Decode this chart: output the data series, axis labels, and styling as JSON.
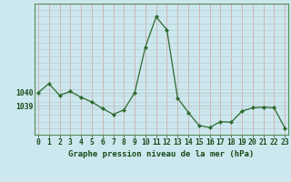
{
  "x": [
    0,
    1,
    2,
    3,
    4,
    5,
    6,
    7,
    8,
    9,
    10,
    11,
    12,
    13,
    14,
    15,
    16,
    17,
    18,
    19,
    20,
    21,
    22,
    23
  ],
  "y": [
    1040.0,
    1040.7,
    1039.8,
    1040.1,
    1039.65,
    1039.3,
    1038.8,
    1038.35,
    1038.7,
    1040.0,
    1043.5,
    1045.8,
    1044.8,
    1039.6,
    1038.5,
    1037.5,
    1037.35,
    1037.8,
    1037.75,
    1038.6,
    1038.85,
    1038.9,
    1038.85,
    1037.3
  ],
  "line_color": "#2d6a2d",
  "marker_color": "#2d6a2d",
  "bg_color": "#cce8ee",
  "vgrid_color": "#d4a0a0",
  "hgrid_color": "#b8ccd0",
  "title": "Graphe pression niveau de la mer (hPa)",
  "title_color": "#1a4a1a",
  "ytick_left": [
    1039,
    1040
  ],
  "xlim": [
    -0.3,
    23.3
  ],
  "ylim_min": 1036.8,
  "ylim_max": 1046.8,
  "border_color": "#5a8a5a",
  "axis_color": "#1a4a1a",
  "tick_fontsize": 5.8,
  "title_fontsize": 6.5
}
